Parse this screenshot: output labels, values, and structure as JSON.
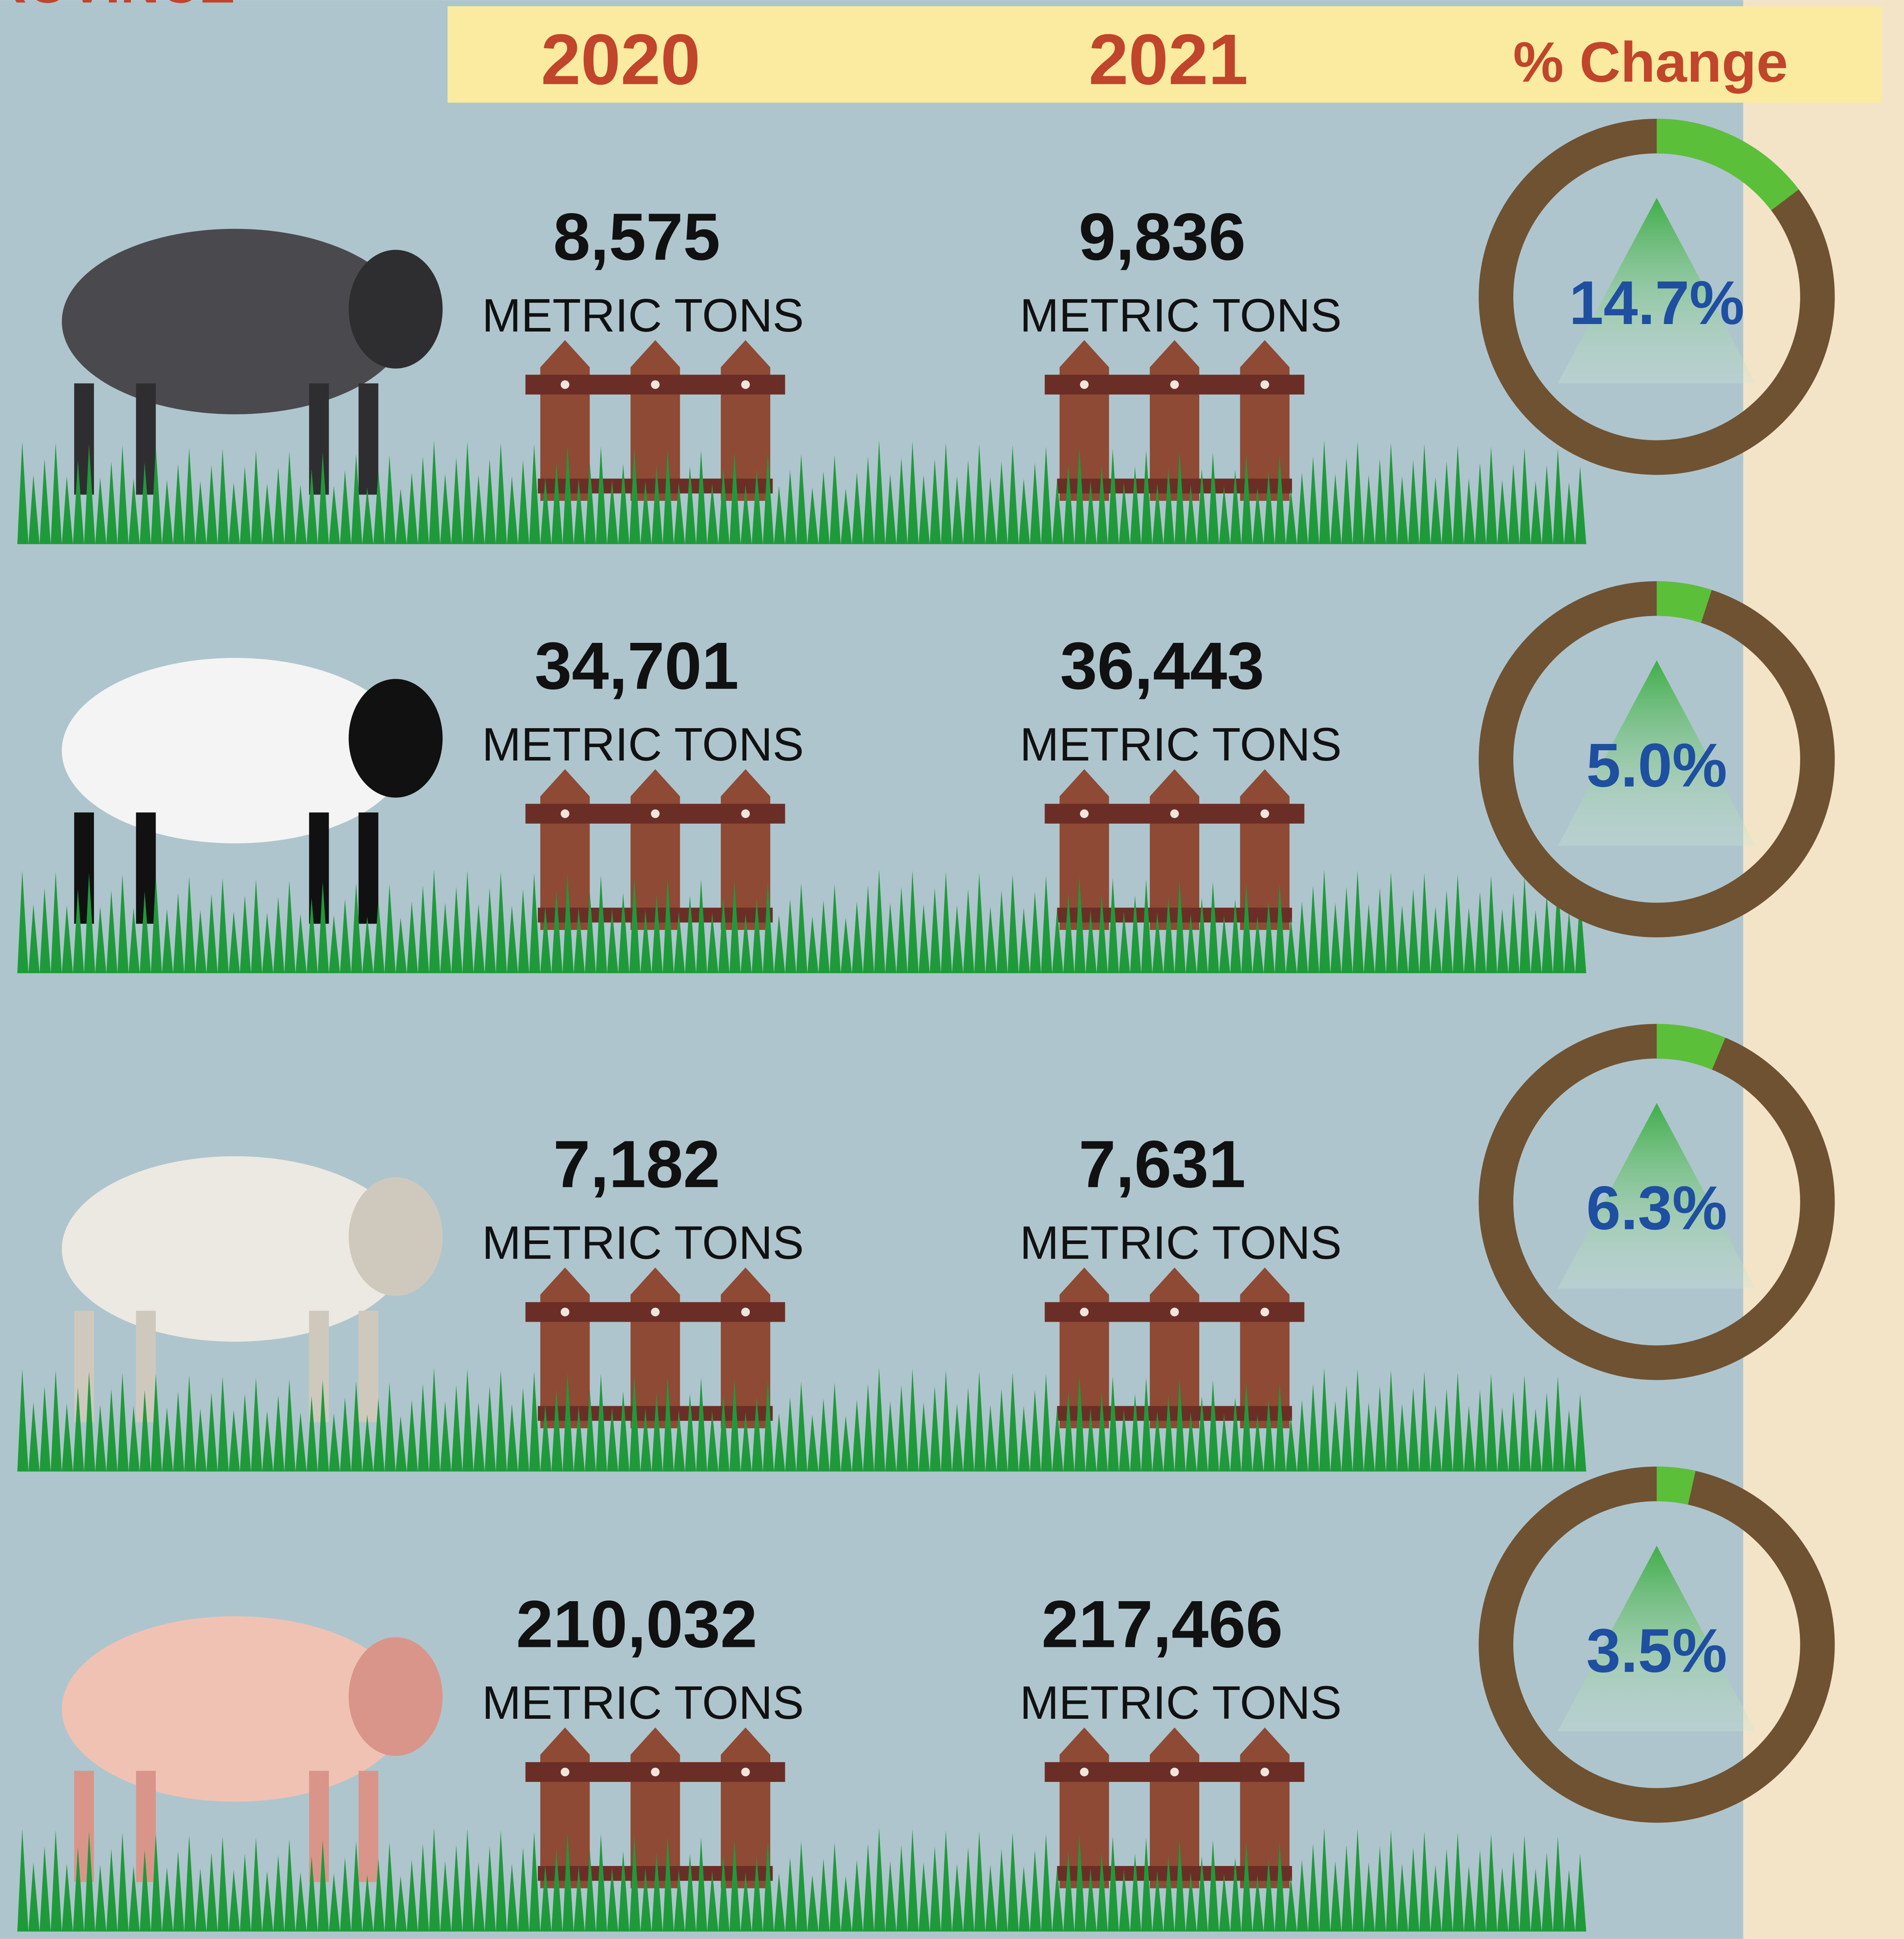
{
  "header": {
    "corner": "ROVINCE",
    "year1": "2020",
    "year2": "2021",
    "change": "% Change"
  },
  "unit": "METRIC TONS",
  "rows": [
    {
      "value_2020": "8,575",
      "value_2021": "9,836",
      "change": {
        "value": 14.7,
        "label": "14.7%"
      }
    },
    {
      "value_2020": "34,701",
      "value_2021": "36,443",
      "change": {
        "value": 5.0,
        "label": "5.0%"
      }
    },
    {
      "value_2020": "7,182",
      "value_2021": "7,631",
      "change": {
        "value": 6.3,
        "label": "6.3%"
      }
    },
    {
      "value_2020": "210,032",
      "value_2021": "217,466",
      "change": {
        "value": 3.5,
        "label": "3.5%"
      }
    }
  ]
}
